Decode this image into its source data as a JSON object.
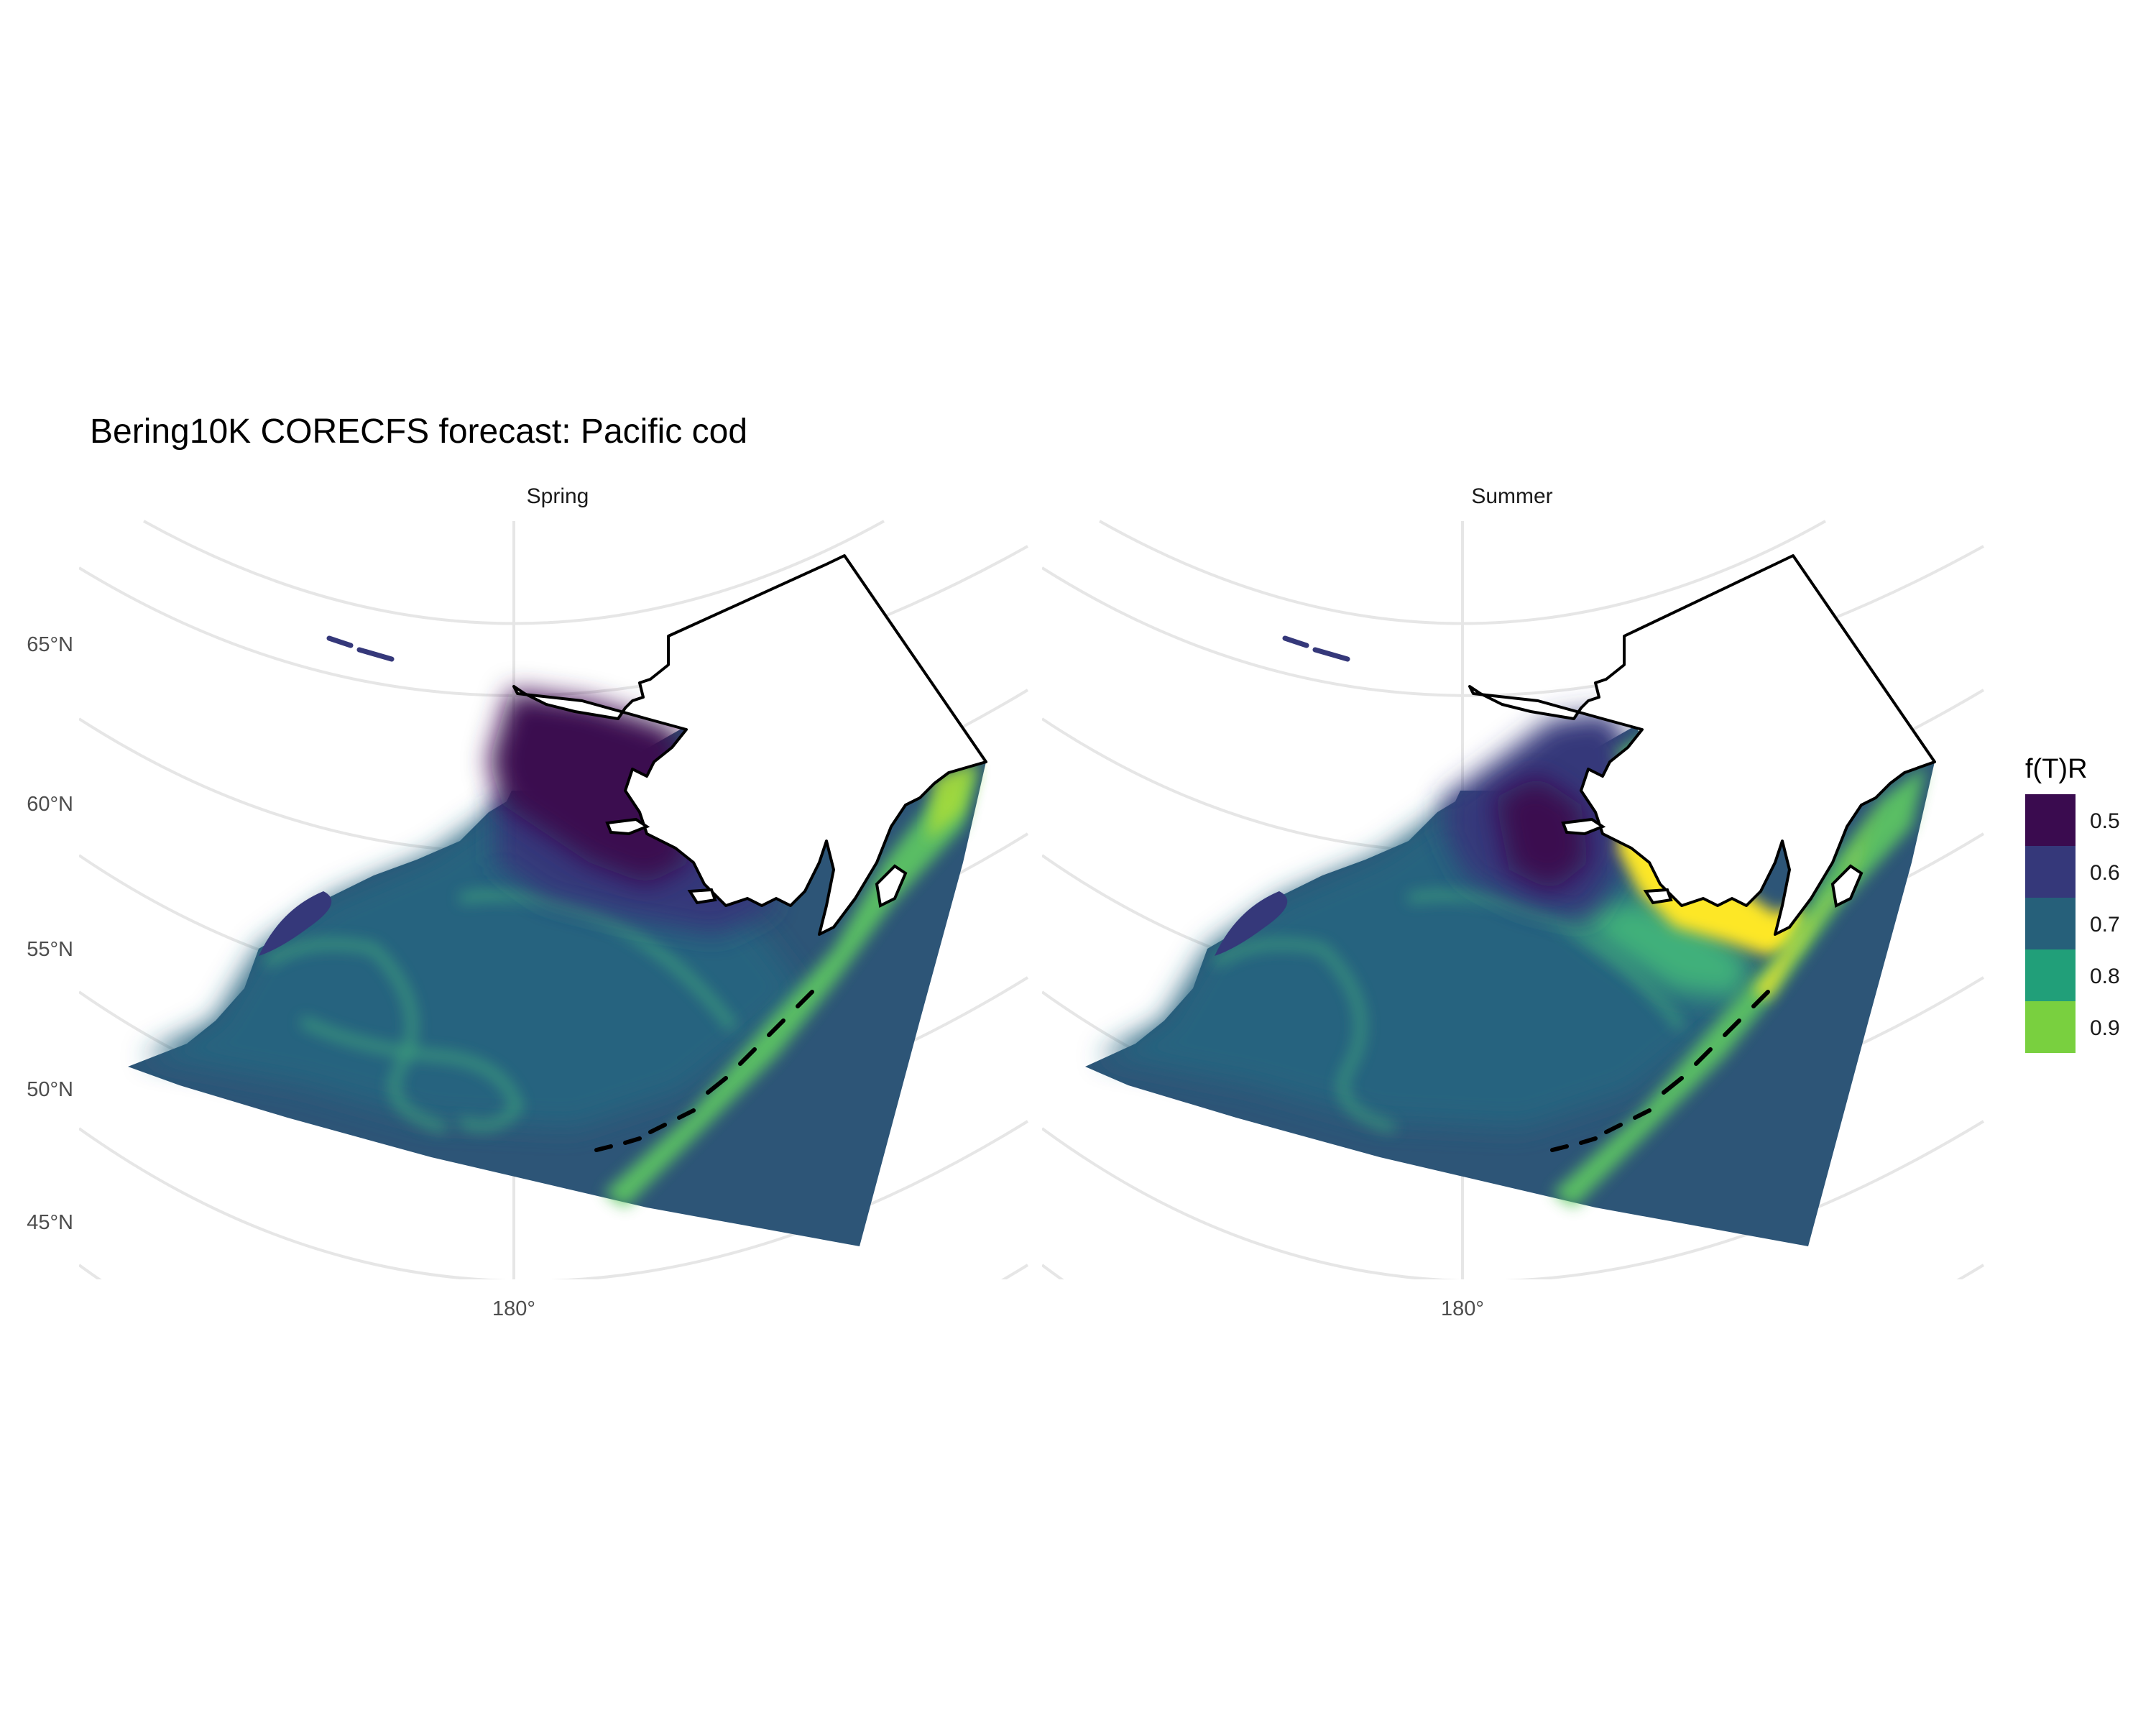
{
  "title": "Bering10K CORECFS forecast: Pacific cod",
  "panels": [
    {
      "label": "Spring"
    },
    {
      "label": "Summer"
    }
  ],
  "axes": {
    "lat_labels": [
      "65°N",
      "60°N",
      "55°N",
      "50°N",
      "45°N"
    ],
    "lon_labels": [
      "180°"
    ]
  },
  "legend": {
    "title": "f(T)R",
    "items": [
      {
        "label": "0.5",
        "color": "#3a0b4f"
      },
      {
        "label": "0.6",
        "color": "#35387a"
      },
      {
        "label": "0.7",
        "color": "#26607a"
      },
      {
        "label": "0.8",
        "color": "#219f79"
      },
      {
        "label": "0.9",
        "color": "#79d03f"
      }
    ]
  },
  "colors": {
    "ocean_base": "#2d5577",
    "shelf": "#26647f",
    "low": "#3a0b4f",
    "mid": "#35387a",
    "high_green": "#5ec962",
    "high_yellow": "#fde725",
    "gridline": "#e6e6e6",
    "coast": "#000000"
  }
}
